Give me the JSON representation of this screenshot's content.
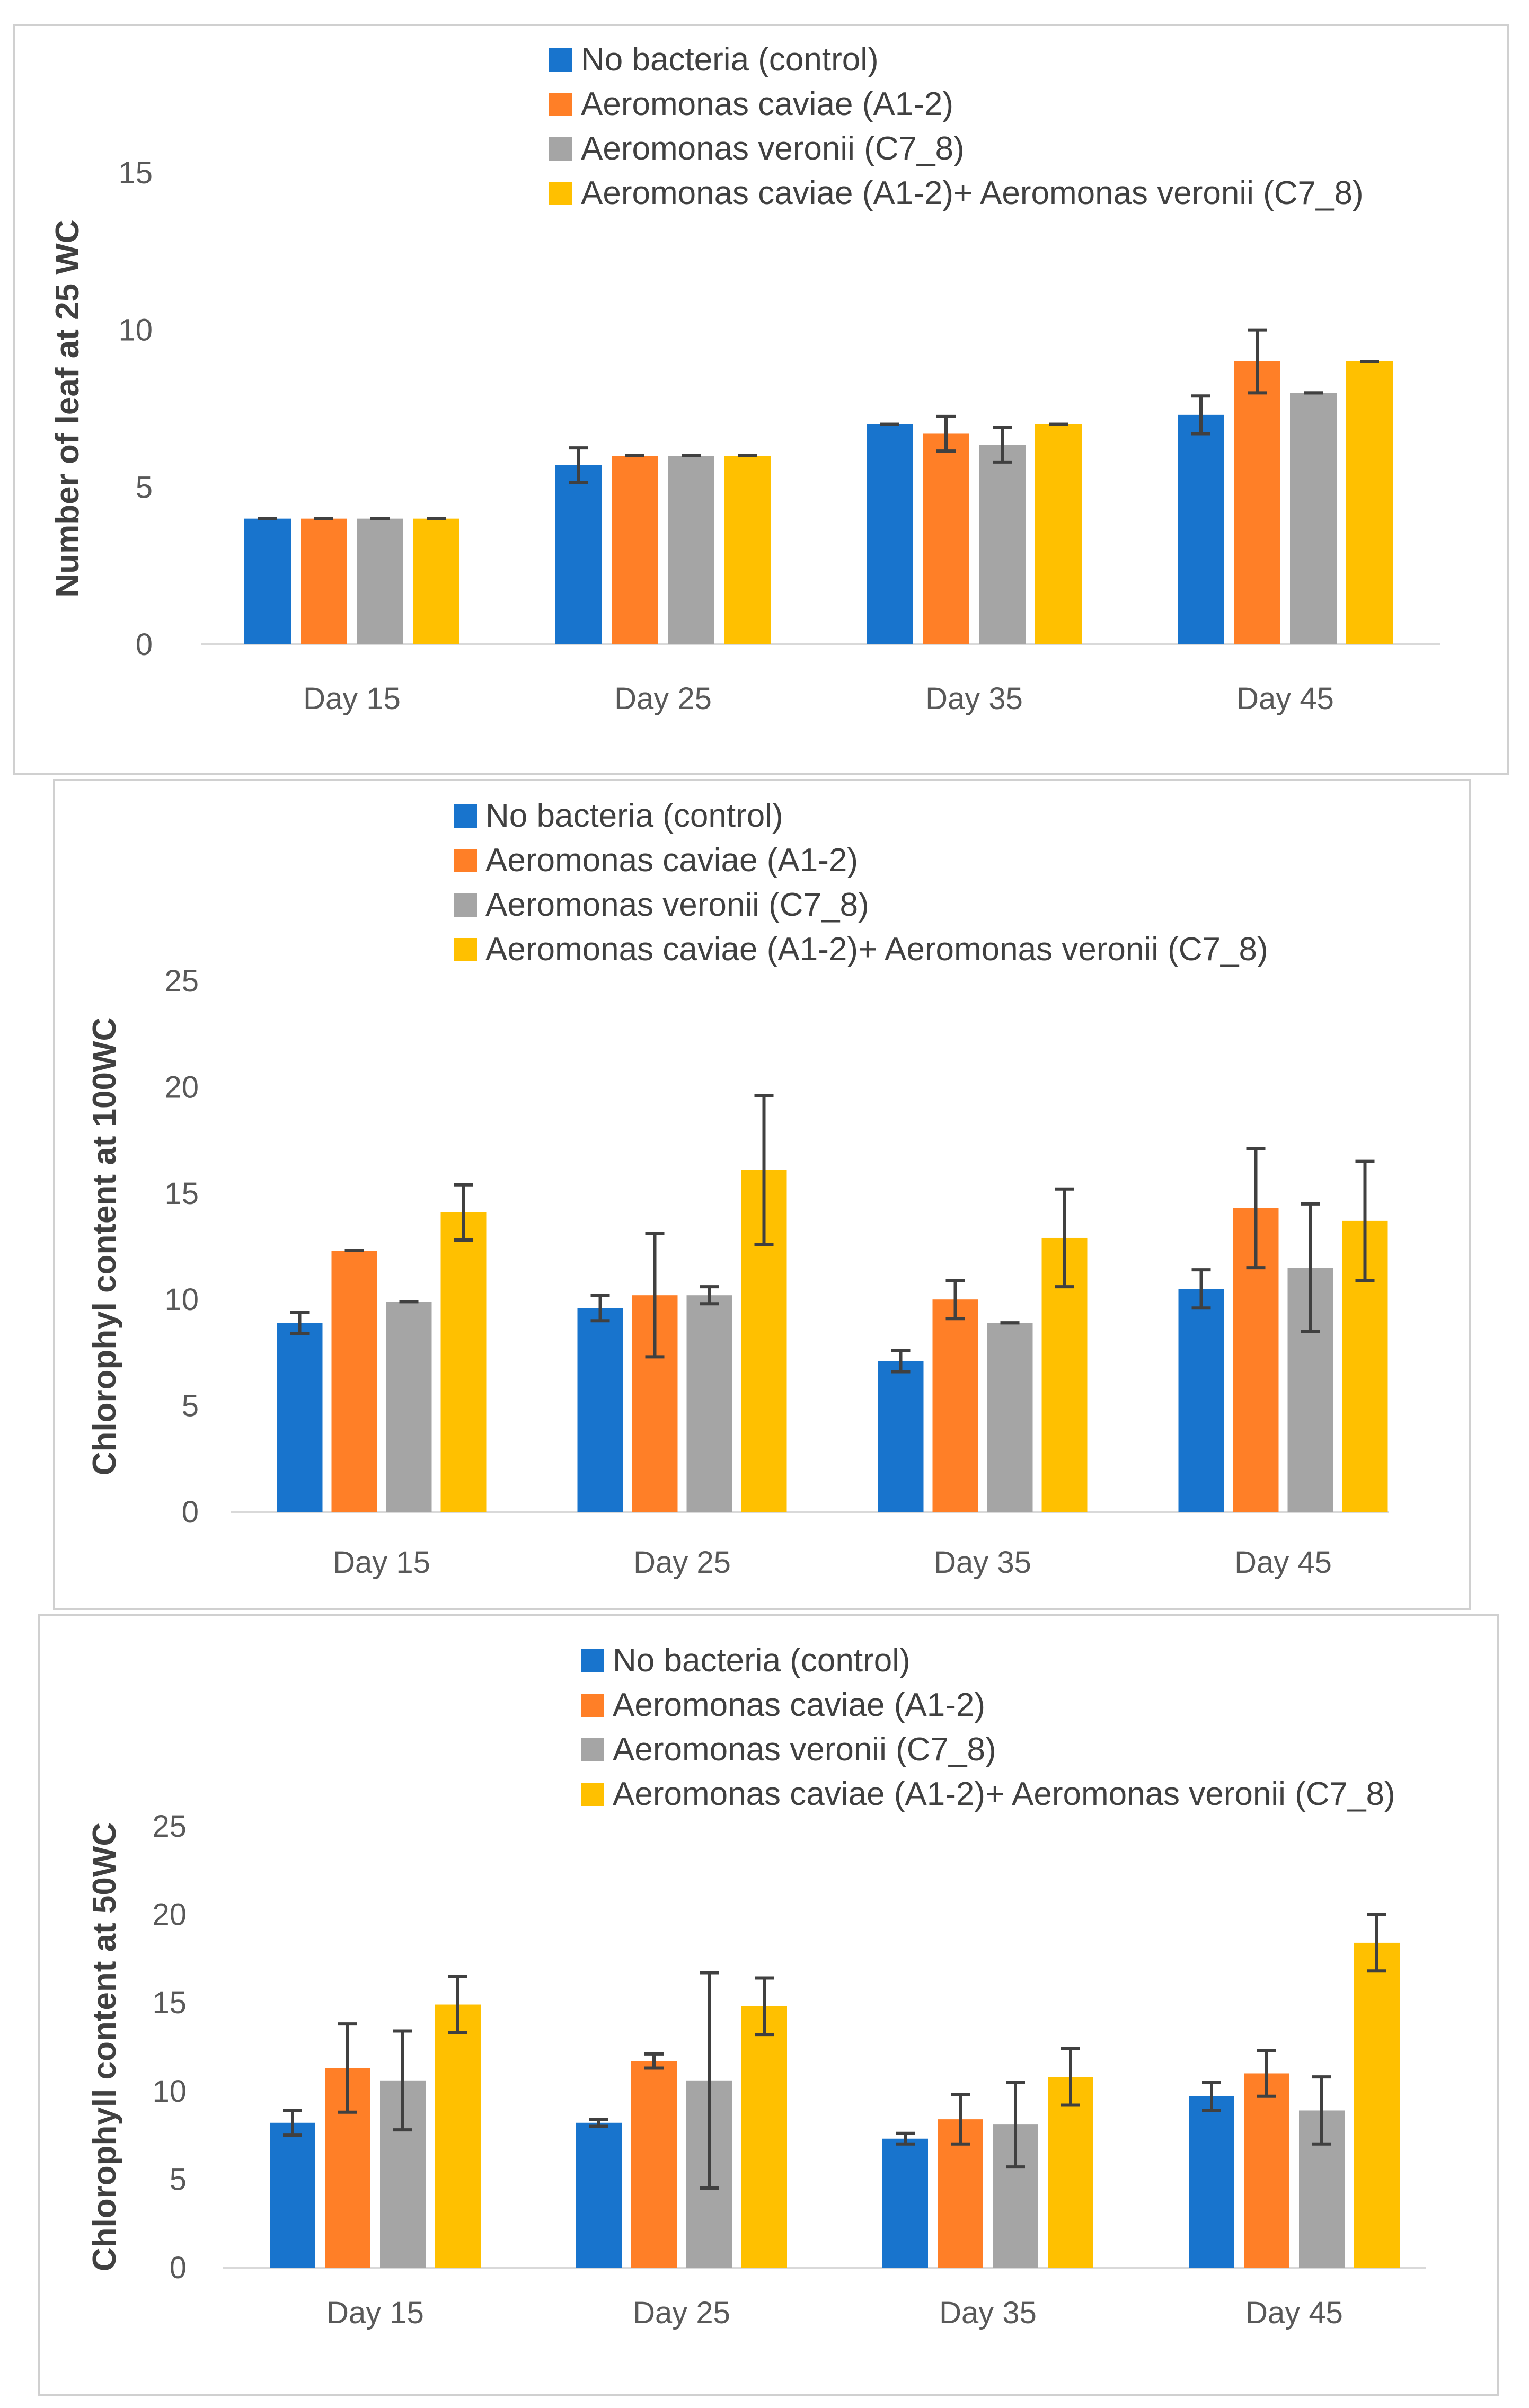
{
  "chart_data": [
    {
      "type": "bar",
      "ylabel": "Number of leaf at 25 WC",
      "xlabel": "",
      "ylim": [
        0,
        15
      ],
      "yticks": [
        0,
        5,
        10,
        15
      ],
      "categories": [
        "Day 15",
        "Day 25",
        "Day 35",
        "Day 45"
      ],
      "series": [
        {
          "name": "No bacteria (control)",
          "color": "#1874CD",
          "values": [
            4.0,
            5.7,
            7.0,
            7.3
          ],
          "errors": [
            0.0,
            0.55,
            0.0,
            0.6
          ]
        },
        {
          "name": "Aeromonas caviae (A1-2)",
          "color": "#FF7F27",
          "values": [
            4.0,
            6.0,
            6.7,
            9.0
          ],
          "errors": [
            0.0,
            0.0,
            0.55,
            1.0
          ]
        },
        {
          "name": "Aeromonas veronii (C7_8)",
          "color": "#A5A5A5",
          "values": [
            4.0,
            6.0,
            6.35,
            8.0
          ],
          "errors": [
            0.0,
            0.0,
            0.55,
            0.0
          ]
        },
        {
          "name": "Aeromonas caviae (A1-2)+ Aeromonas veronii (C7_8)",
          "color": "#FFC000",
          "values": [
            4.0,
            6.0,
            7.0,
            9.0
          ],
          "errors": [
            0.0,
            0.0,
            0.0,
            0.0
          ]
        }
      ]
    },
    {
      "type": "bar",
      "ylabel": "Chlorophyl content at 100WC",
      "xlabel": "",
      "ylim": [
        0,
        25
      ],
      "yticks": [
        0,
        5,
        10,
        15,
        20,
        25
      ],
      "categories": [
        "Day 15",
        "Day 25",
        "Day 35",
        "Day 45"
      ],
      "series": [
        {
          "name": "No bacteria (control)",
          "color": "#1874CD",
          "values": [
            8.9,
            9.6,
            7.1,
            10.5
          ],
          "errors": [
            0.5,
            0.6,
            0.5,
            0.9
          ]
        },
        {
          "name": "Aeromonas caviae (A1-2)",
          "color": "#FF7F27",
          "values": [
            12.3,
            10.2,
            10.0,
            14.3
          ],
          "errors": [
            0.0,
            2.9,
            0.9,
            2.8
          ]
        },
        {
          "name": "Aeromonas veronii (C7_8)",
          "color": "#A5A5A5",
          "values": [
            9.9,
            10.2,
            8.9,
            11.5
          ],
          "errors": [
            0.0,
            0.4,
            0.0,
            3.0
          ]
        },
        {
          "name": "Aeromonas caviae (A1-2)+ Aeromonas veronii (C7_8)",
          "color": "#FFC000",
          "values": [
            14.1,
            16.1,
            12.9,
            13.7
          ],
          "errors": [
            1.3,
            3.5,
            2.3,
            2.8
          ]
        }
      ]
    },
    {
      "type": "bar",
      "ylabel": "Chlorophyll content at 50WC",
      "xlabel": "",
      "ylim": [
        0,
        25
      ],
      "yticks": [
        0,
        5,
        10,
        15,
        20,
        25
      ],
      "categories": [
        "Day 15",
        "Day 25",
        "Day 35",
        "Day 45"
      ],
      "series": [
        {
          "name": "No bacteria (control)",
          "color": "#1874CD",
          "values": [
            8.2,
            8.2,
            7.3,
            9.7
          ],
          "errors": [
            0.7,
            0.2,
            0.3,
            0.8
          ]
        },
        {
          "name": "Aeromonas caviae (A1-2)",
          "color": "#FF7F27",
          "values": [
            11.3,
            11.7,
            8.4,
            11.0
          ],
          "errors": [
            2.5,
            0.4,
            1.4,
            1.3
          ]
        },
        {
          "name": "Aeromonas veronii (C7_8)",
          "color": "#A5A5A5",
          "values": [
            10.6,
            10.6,
            8.1,
            8.9
          ],
          "errors": [
            2.8,
            6.1,
            2.4,
            1.9
          ]
        },
        {
          "name": "Aeromonas caviae (A1-2)+ Aeromonas veronii (C7_8)",
          "color": "#FFC000",
          "values": [
            14.9,
            14.8,
            10.8,
            18.4
          ],
          "errors": [
            1.6,
            1.6,
            1.6,
            1.6
          ]
        }
      ]
    }
  ]
}
